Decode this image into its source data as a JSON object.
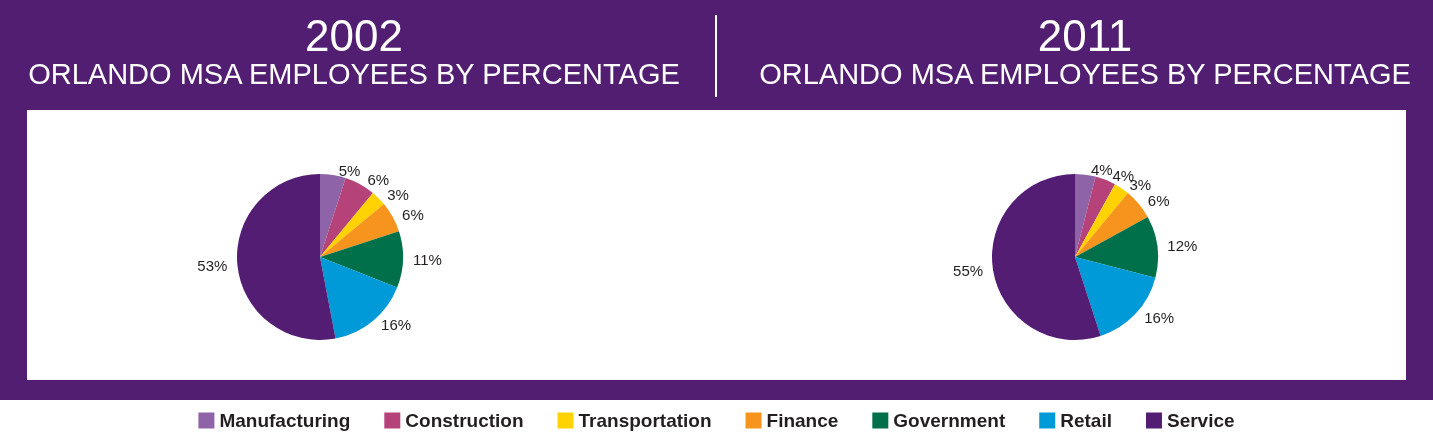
{
  "chart_data": [
    {
      "type": "pie",
      "title": "2002",
      "subtitle": "ORLANDO MSA EMPLOYEES BY PERCENTAGE",
      "categories": [
        "Manufacturing",
        "Construction",
        "Transportation",
        "Finance",
        "Government",
        "Retail",
        "Service"
      ],
      "values": [
        5,
        6,
        3,
        6,
        11,
        16,
        53
      ],
      "value_labels": [
        "5%",
        "6%",
        "3%",
        "6%",
        "11%",
        "16%",
        "53%"
      ],
      "colors": [
        "#8e63a8",
        "#b5437a",
        "#ffd200",
        "#f7941d",
        "#00704a",
        "#009ad8",
        "#521d72"
      ],
      "legend": "bottom"
    },
    {
      "type": "pie",
      "title": "2011",
      "subtitle": "ORLANDO MSA EMPLOYEES BY PERCENTAGE",
      "categories": [
        null,
        null,
        null,
        null,
        null,
        null,
        null
      ],
      "values": [
        4,
        4,
        3,
        6,
        12,
        16,
        55
      ],
      "value_labels": [
        "4%",
        "4%",
        "3%",
        "6%",
        "12%",
        "16%",
        "55%"
      ],
      "colors": [
        "#8e63a8",
        "#b5437a",
        "#ffd200",
        "#f7941d",
        "#00704a",
        "#009ad8",
        "#521d72"
      ]
    }
  ]
}
